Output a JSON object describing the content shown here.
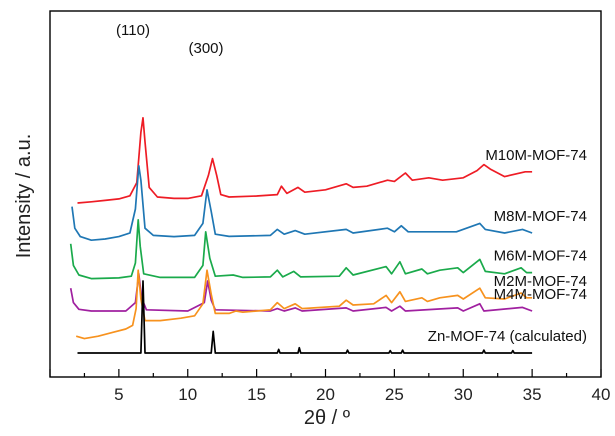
{
  "chart_data": {
    "type": "line",
    "title": "",
    "xlabel": "2θ / º",
    "ylabel": "Intensity / a.u.",
    "xlim": [
      0,
      40
    ],
    "xticks": [
      5,
      10,
      15,
      20,
      25,
      30,
      35,
      40
    ],
    "y_ticks_shown": false,
    "grid": false,
    "legend": "inline labels at right end of each trace",
    "annotations": [
      "(110)",
      "(300)"
    ],
    "series": [
      {
        "name": "M10M-MOF-74",
        "color": "#ee1c25",
        "offset": 6.2,
        "points": [
          [
            2.0,
            0.05
          ],
          [
            3.0,
            0.1
          ],
          [
            4.0,
            0.16
          ],
          [
            5.0,
            0.22
          ],
          [
            5.8,
            0.35
          ],
          [
            6.3,
            0.9
          ],
          [
            6.6,
            3.0
          ],
          [
            6.75,
            3.6
          ],
          [
            6.9,
            2.6
          ],
          [
            7.2,
            0.7
          ],
          [
            7.8,
            0.3
          ],
          [
            9.0,
            0.24
          ],
          [
            10.0,
            0.24
          ],
          [
            11.0,
            0.35
          ],
          [
            11.5,
            1.2
          ],
          [
            11.8,
            1.9
          ],
          [
            12.1,
            1.2
          ],
          [
            12.4,
            0.4
          ],
          [
            13.0,
            0.3
          ],
          [
            15.0,
            0.34
          ],
          [
            16.5,
            0.4
          ],
          [
            16.8,
            0.75
          ],
          [
            17.2,
            0.45
          ],
          [
            18.0,
            0.7
          ],
          [
            18.5,
            0.5
          ],
          [
            20.0,
            0.6
          ],
          [
            21.5,
            0.85
          ],
          [
            22.0,
            0.7
          ],
          [
            23.0,
            0.75
          ],
          [
            24.5,
            1.0
          ],
          [
            25.0,
            0.95
          ],
          [
            25.8,
            1.3
          ],
          [
            26.3,
            1.0
          ],
          [
            27.5,
            1.1
          ],
          [
            28.5,
            1.0
          ],
          [
            30.0,
            1.1
          ],
          [
            31.0,
            1.4
          ],
          [
            31.5,
            1.65
          ],
          [
            32.0,
            1.45
          ],
          [
            33.0,
            1.15
          ],
          [
            34.5,
            1.35
          ],
          [
            35.0,
            1.35
          ]
        ]
      },
      {
        "name": "M8M-MOF-74",
        "color": "#1f77b4",
        "offset": 4.6,
        "points": [
          [
            1.6,
            1.5
          ],
          [
            1.8,
            0.6
          ],
          [
            2.2,
            0.25
          ],
          [
            3.0,
            0.1
          ],
          [
            4.0,
            0.15
          ],
          [
            5.0,
            0.25
          ],
          [
            5.8,
            0.4
          ],
          [
            6.2,
            1.4
          ],
          [
            6.45,
            3.2
          ],
          [
            6.6,
            2.6
          ],
          [
            6.9,
            0.6
          ],
          [
            7.5,
            0.3
          ],
          [
            9.0,
            0.25
          ],
          [
            10.5,
            0.3
          ],
          [
            11.1,
            0.8
          ],
          [
            11.4,
            2.2
          ],
          [
            11.7,
            1.3
          ],
          [
            12.0,
            0.35
          ],
          [
            13.0,
            0.26
          ],
          [
            16.0,
            0.3
          ],
          [
            16.5,
            0.55
          ],
          [
            17.0,
            0.35
          ],
          [
            17.8,
            0.5
          ],
          [
            18.5,
            0.35
          ],
          [
            21.5,
            0.55
          ],
          [
            22.0,
            0.4
          ],
          [
            24.5,
            0.6
          ],
          [
            25.0,
            0.45
          ],
          [
            25.5,
            0.7
          ],
          [
            26.0,
            0.45
          ],
          [
            29.5,
            0.45
          ],
          [
            31.2,
            0.8
          ],
          [
            31.6,
            0.55
          ],
          [
            33.0,
            0.4
          ],
          [
            34.3,
            0.55
          ],
          [
            35.0,
            0.4
          ]
        ]
      },
      {
        "name": "M6M-MOF-74",
        "color": "#1aaa4b",
        "offset": 3.05,
        "points": [
          [
            1.5,
            1.5
          ],
          [
            1.7,
            0.6
          ],
          [
            2.1,
            0.2
          ],
          [
            3.0,
            0.05
          ],
          [
            5.0,
            0.08
          ],
          [
            5.9,
            0.15
          ],
          [
            6.2,
            0.7
          ],
          [
            6.4,
            2.5
          ],
          [
            6.55,
            1.4
          ],
          [
            6.8,
            0.25
          ],
          [
            8.0,
            0.1
          ],
          [
            10.5,
            0.1
          ],
          [
            11.1,
            0.6
          ],
          [
            11.3,
            2.0
          ],
          [
            11.6,
            0.9
          ],
          [
            12.0,
            0.15
          ],
          [
            13.3,
            0.2
          ],
          [
            14.0,
            0.1
          ],
          [
            16.0,
            0.12
          ],
          [
            16.5,
            0.4
          ],
          [
            16.9,
            0.12
          ],
          [
            17.7,
            0.35
          ],
          [
            18.2,
            0.12
          ],
          [
            21.0,
            0.15
          ],
          [
            21.5,
            0.5
          ],
          [
            22.0,
            0.2
          ],
          [
            24.4,
            0.55
          ],
          [
            24.8,
            0.25
          ],
          [
            25.4,
            0.75
          ],
          [
            25.8,
            0.25
          ],
          [
            27.0,
            0.45
          ],
          [
            27.4,
            0.25
          ],
          [
            28.3,
            0.4
          ],
          [
            29.6,
            0.5
          ],
          [
            30.0,
            0.3
          ],
          [
            31.2,
            0.85
          ],
          [
            31.6,
            0.35
          ],
          [
            33.0,
            0.25
          ],
          [
            34.2,
            0.5
          ],
          [
            34.6,
            0.3
          ],
          [
            35.0,
            0.3
          ]
        ]
      },
      {
        "name": "M4M-MOF-74",
        "color": "#a020a0",
        "offset": 1.7,
        "points": [
          [
            1.5,
            1.0
          ],
          [
            1.7,
            0.4
          ],
          [
            2.1,
            0.12
          ],
          [
            3.0,
            0.05
          ],
          [
            5.5,
            0.05
          ],
          [
            6.2,
            0.4
          ],
          [
            6.45,
            1.6
          ],
          [
            6.65,
            0.6
          ],
          [
            7.0,
            0.1
          ],
          [
            10.0,
            0.05
          ],
          [
            11.2,
            0.4
          ],
          [
            11.45,
            1.3
          ],
          [
            11.7,
            0.5
          ],
          [
            12.0,
            0.1
          ],
          [
            16.0,
            0.05
          ],
          [
            16.5,
            0.15
          ],
          [
            17.0,
            0.05
          ],
          [
            17.8,
            0.18
          ],
          [
            18.3,
            0.05
          ],
          [
            21.5,
            0.18
          ],
          [
            22.0,
            0.05
          ],
          [
            24.4,
            0.2
          ],
          [
            24.8,
            0.05
          ],
          [
            25.4,
            0.25
          ],
          [
            25.8,
            0.05
          ],
          [
            29.6,
            0.18
          ],
          [
            30.0,
            0.05
          ],
          [
            31.2,
            0.35
          ],
          [
            31.5,
            0.05
          ],
          [
            34.3,
            0.2
          ],
          [
            35.0,
            0.05
          ]
        ]
      },
      {
        "name": "M2M-MOF-74",
        "color": "#f7921e",
        "offset": 0.85,
        "points": [
          [
            1.9,
            -0.15
          ],
          [
            2.5,
            -0.25
          ],
          [
            3.5,
            -0.15
          ],
          [
            4.5,
            0.0
          ],
          [
            5.5,
            0.15
          ],
          [
            6.0,
            0.3
          ],
          [
            6.25,
            1.0
          ],
          [
            6.4,
            2.6
          ],
          [
            6.6,
            1.4
          ],
          [
            6.9,
            0.5
          ],
          [
            8.0,
            0.5
          ],
          [
            9.5,
            0.6
          ],
          [
            10.5,
            0.7
          ],
          [
            11.1,
            1.2
          ],
          [
            11.4,
            2.6
          ],
          [
            11.7,
            1.6
          ],
          [
            12.0,
            0.8
          ],
          [
            13.0,
            0.8
          ],
          [
            13.5,
            0.9
          ],
          [
            14.0,
            0.85
          ],
          [
            16.0,
            0.95
          ],
          [
            16.5,
            1.25
          ],
          [
            17.0,
            1.0
          ],
          [
            17.8,
            1.2
          ],
          [
            18.3,
            1.0
          ],
          [
            21.0,
            1.1
          ],
          [
            21.5,
            1.35
          ],
          [
            22.0,
            1.15
          ],
          [
            23.5,
            1.2
          ],
          [
            24.4,
            1.55
          ],
          [
            24.8,
            1.25
          ],
          [
            25.4,
            1.7
          ],
          [
            25.8,
            1.3
          ],
          [
            27.0,
            1.45
          ],
          [
            27.4,
            1.3
          ],
          [
            28.3,
            1.45
          ],
          [
            29.6,
            1.55
          ],
          [
            30.0,
            1.4
          ],
          [
            31.2,
            1.85
          ],
          [
            31.6,
            1.45
          ],
          [
            33.0,
            1.4
          ],
          [
            34.2,
            1.65
          ],
          [
            34.6,
            1.45
          ],
          [
            35.0,
            1.45
          ]
        ]
      },
      {
        "name": "Zn-MOF-74 (calculated)",
        "color": "#000000",
        "offset": 0.0,
        "points": [
          [
            2.0,
            0.0
          ],
          [
            6.6,
            0.0
          ],
          [
            6.75,
            3.0
          ],
          [
            6.9,
            0.0
          ],
          [
            11.7,
            0.0
          ],
          [
            11.85,
            0.9
          ],
          [
            12.0,
            0.0
          ],
          [
            16.5,
            0.0
          ],
          [
            16.6,
            0.15
          ],
          [
            16.7,
            0.0
          ],
          [
            18.0,
            0.0
          ],
          [
            18.1,
            0.22
          ],
          [
            18.2,
            0.0
          ],
          [
            21.5,
            0.0
          ],
          [
            21.6,
            0.12
          ],
          [
            21.7,
            0.0
          ],
          [
            24.6,
            0.0
          ],
          [
            24.7,
            0.1
          ],
          [
            24.8,
            0.0
          ],
          [
            25.5,
            0.0
          ],
          [
            25.6,
            0.12
          ],
          [
            25.7,
            0.0
          ],
          [
            31.4,
            0.0
          ],
          [
            31.5,
            0.12
          ],
          [
            31.6,
            0.0
          ],
          [
            33.5,
            0.0
          ],
          [
            33.6,
            0.1
          ],
          [
            33.7,
            0.0
          ],
          [
            35.0,
            0.0
          ]
        ]
      }
    ]
  }
}
